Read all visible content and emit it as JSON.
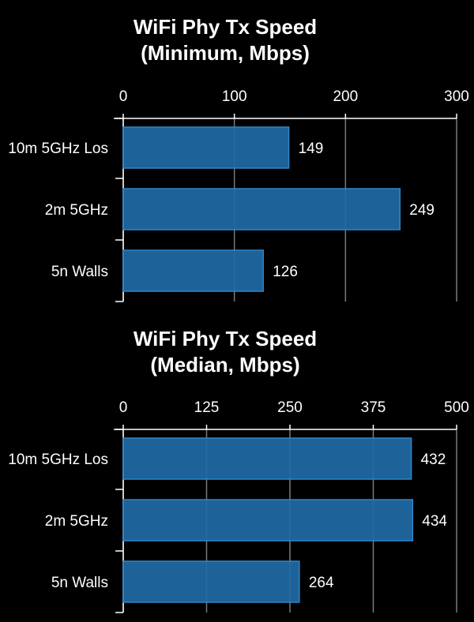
{
  "chart_data": [
    {
      "type": "bar",
      "orientation": "horizontal",
      "title_lines": [
        "WiFi Phy Tx Speed",
        "(Minimum, Mbps)"
      ],
      "categories": [
        "10m 5GHz Los",
        "2m 5GHz",
        "5n Walls"
      ],
      "values": [
        149,
        249,
        126
      ],
      "value_labels": [
        "149",
        "249",
        "126"
      ],
      "xlim": [
        0,
        300
      ],
      "xticks": [
        "0",
        "100",
        "200",
        "300"
      ],
      "x_axis_position": "top",
      "grid": true,
      "bar_color": "#1f6aa5",
      "bar_edge_color": "#2e86c9",
      "background": "#000000"
    },
    {
      "type": "bar",
      "orientation": "horizontal",
      "title_lines": [
        "WiFi Phy Tx Speed",
        "(Median, Mbps)"
      ],
      "categories": [
        "10m 5GHz Los",
        "2m 5GHz",
        "5n Walls"
      ],
      "values": [
        432,
        434,
        264
      ],
      "value_labels": [
        "432",
        "434",
        "264"
      ],
      "xlim": [
        0,
        500
      ],
      "xticks": [
        "0",
        "125",
        "250",
        "375",
        "500"
      ],
      "x_axis_position": "top",
      "grid": true,
      "bar_color": "#1f6aa5",
      "bar_edge_color": "#2e86c9",
      "background": "#000000"
    }
  ]
}
